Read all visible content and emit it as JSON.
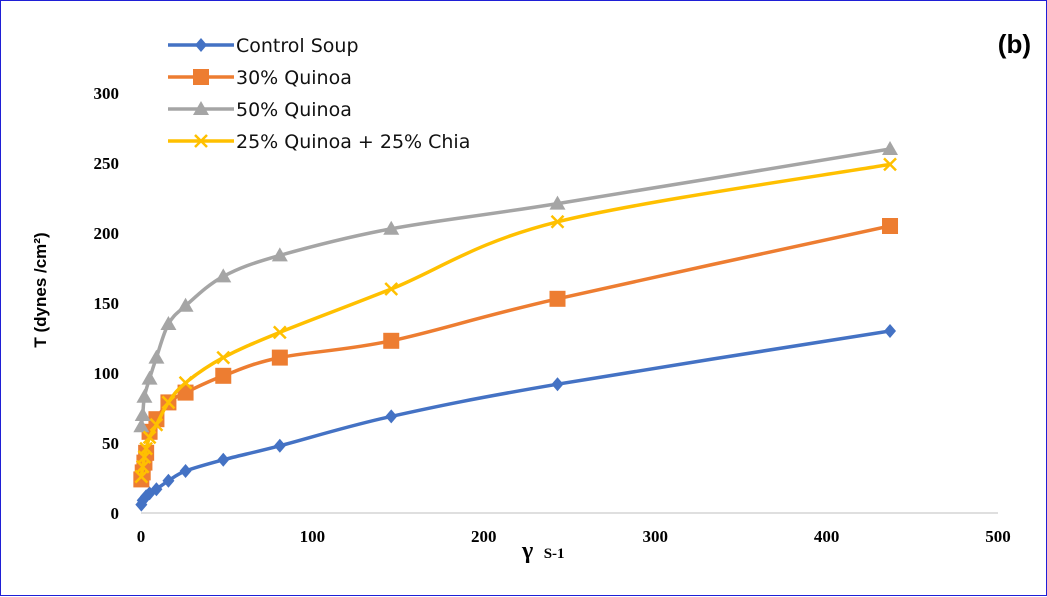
{
  "chart_data": {
    "type": "line",
    "panel_label": "(b)",
    "ylabel": "T (dynes /cm²)",
    "xlabel": "γ",
    "xlabel_unit": "S-1",
    "xlim": [
      0,
      500
    ],
    "ylim": [
      0,
      300
    ],
    "x_ticks": [
      0,
      100,
      200,
      300,
      400,
      500
    ],
    "y_ticks": [
      0,
      50,
      100,
      150,
      200,
      250,
      300
    ],
    "grid": false,
    "legend_position": "top-left",
    "series": [
      {
        "name": "Control Soup",
        "color": "#4472c4",
        "marker": "diamond",
        "points": [
          [
            0.2,
            6
          ],
          [
            1,
            9
          ],
          [
            3,
            12
          ],
          [
            5,
            14
          ],
          [
            9,
            17
          ],
          [
            16,
            23
          ],
          [
            26,
            30
          ],
          [
            48,
            38
          ],
          [
            81,
            48
          ],
          [
            146,
            69
          ],
          [
            243,
            92
          ],
          [
            437,
            130
          ]
        ]
      },
      {
        "name": "30% Quinoa",
        "color": "#ed7d31",
        "marker": "square",
        "points": [
          [
            0.2,
            24
          ],
          [
            1,
            29
          ],
          [
            2,
            36
          ],
          [
            3,
            43
          ],
          [
            5,
            58
          ],
          [
            9,
            67
          ],
          [
            16,
            79
          ],
          [
            26,
            86
          ],
          [
            48,
            98
          ],
          [
            81,
            111
          ],
          [
            146,
            123
          ],
          [
            243,
            153
          ],
          [
            437,
            205
          ]
        ]
      },
      {
        "name": "50% Quinoa",
        "color": "#a5a5a5",
        "marker": "triangle",
        "points": [
          [
            0.2,
            62
          ],
          [
            1,
            70
          ],
          [
            2,
            83
          ],
          [
            5,
            96
          ],
          [
            9,
            111
          ],
          [
            16,
            135
          ],
          [
            26,
            148
          ],
          [
            48,
            169
          ],
          [
            81,
            184
          ],
          [
            146,
            203
          ],
          [
            243,
            221
          ],
          [
            437,
            260
          ]
        ]
      },
      {
        "name": "25% Quinoa + 25% Chia",
        "color": "#ffc000",
        "marker": "x",
        "points": [
          [
            0.2,
            26
          ],
          [
            1,
            33
          ],
          [
            2,
            40
          ],
          [
            3,
            46
          ],
          [
            5,
            54
          ],
          [
            9,
            63
          ],
          [
            16,
            79
          ],
          [
            26,
            93
          ],
          [
            48,
            111
          ],
          [
            81,
            129
          ],
          [
            146,
            160
          ],
          [
            243,
            208
          ],
          [
            437,
            249
          ]
        ]
      }
    ]
  }
}
